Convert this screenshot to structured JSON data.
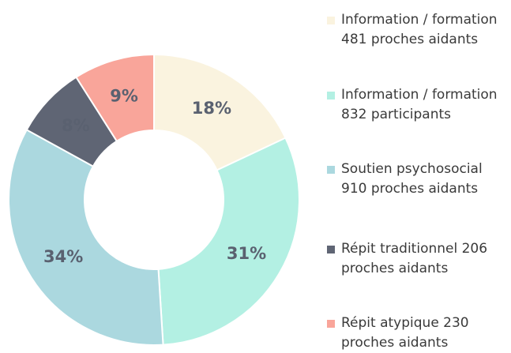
{
  "chart_data": {
    "type": "donut",
    "series": [
      {
        "name": "Information / formation 481 proches aidants",
        "color": "#faf3df",
        "values": [
          18
        ],
        "value_labels": [
          "18%"
        ]
      },
      {
        "name": "Information / formation 832 participants",
        "color": "#b3f0e3",
        "values": [
          31
        ],
        "value_labels": [
          "31%"
        ]
      },
      {
        "name": "Soutien psychosocial 910 proches aidants",
        "color": "#abd8df",
        "values": [
          34
        ],
        "value_labels": [
          "34%"
        ]
      },
      {
        "name": "Répit traditionnel 206 proches aidants",
        "color": "#5f6574",
        "values": [
          8
        ],
        "value_labels": [
          "8%"
        ]
      },
      {
        "name": "Répit atypique 230 proches aidants",
        "color": "#f9a59a",
        "values": [
          9
        ],
        "value_labels": [
          "9%"
        ]
      }
    ],
    "legend": "right"
  }
}
